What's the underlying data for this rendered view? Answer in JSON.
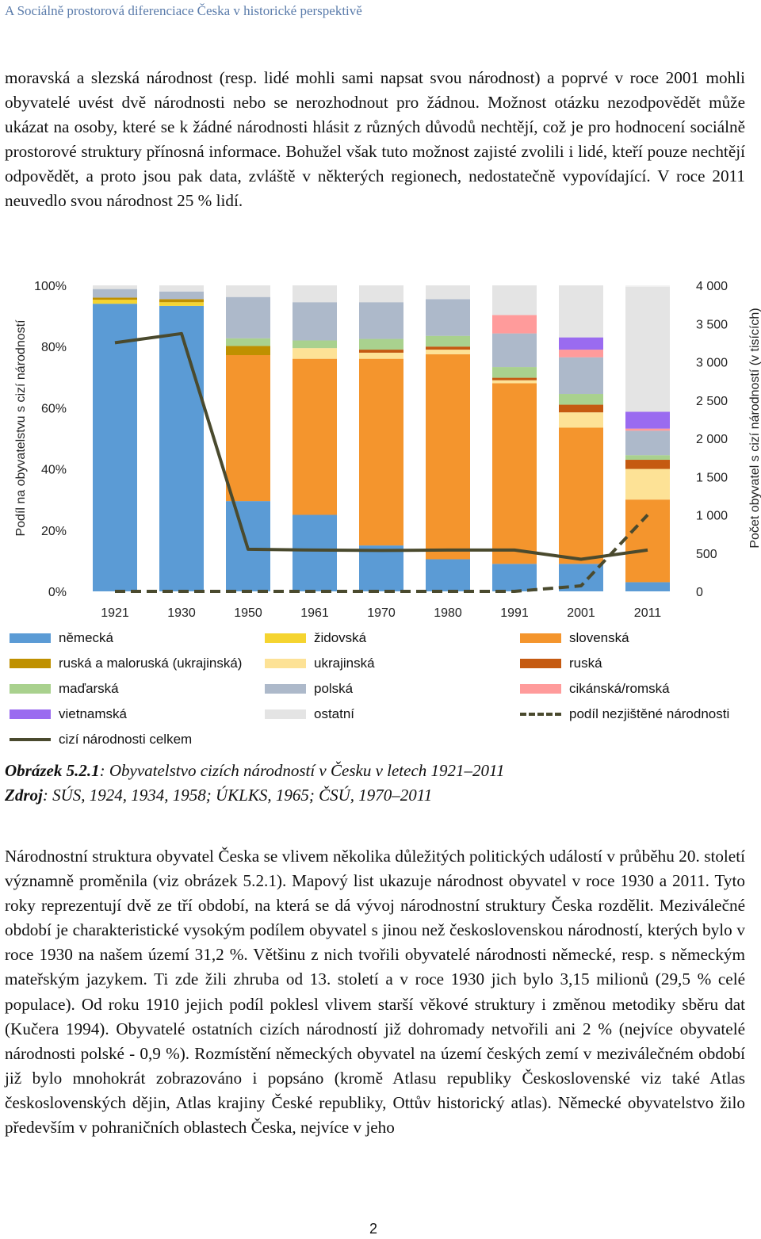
{
  "header": {
    "running_title": "A Sociálně prostorová diferenciace Česka v historické perspektivě"
  },
  "paragraph1": {
    "text": "moravská a slezská národnost (resp. lidé mohli sami napsat svou národnost) a poprvé v roce 2001 mohli obyvatelé uvést dvě národnosti nebo se nerozhodnout pro žádnou. Možnost otázku nezodpovědět může ukázat na osoby, které se k žádné národnosti hlásit z různých důvodů nechtějí, což je pro hodnocení sociálně prostorové struktury přínosná informace. Bohužel však tuto možnost zajisté zvolili i lidé, kteří pouze nechtějí odpovědět, a proto jsou pak data, zvláště v některých regionech, nedostatečně vypovídající. V roce 2011 neuvedlo svou národnost 25 % lidí."
  },
  "chart_data": {
    "type": "bar",
    "stacked": true,
    "categories": [
      "1921",
      "1930",
      "1950",
      "1961",
      "1970",
      "1980",
      "1991",
      "2001",
      "2011"
    ],
    "ylabel": "Podíl na obyvatelstvu s cizí národností",
    "y2label": "Počet obyvatel s cizí národností (v tisících)",
    "y_ticks": [
      "0%",
      "20%",
      "40%",
      "60%",
      "80%",
      "100%"
    ],
    "y2_ticks": [
      "0",
      "500",
      "1 000",
      "1 500",
      "2 000",
      "2 500",
      "3 000",
      "3 500",
      "4 000"
    ],
    "ylim": [
      0,
      100
    ],
    "y2lim": [
      0,
      4000
    ],
    "series": [
      {
        "name": "německá",
        "color": "#5b9bd5",
        "values": [
          94,
          93.3,
          29.5,
          25,
          15,
          10.5,
          9,
          9,
          3
        ]
      },
      {
        "name": "židovská",
        "color": "#f5d430",
        "values": [
          1.3,
          1.2,
          0,
          0,
          0,
          0,
          0,
          0,
          0
        ]
      },
      {
        "name": "slovenská",
        "color": "#f4952d",
        "values": [
          0,
          0,
          47.7,
          51,
          61,
          67,
          59,
          44.5,
          27
        ]
      },
      {
        "name": "ruská a maloruská (ukrajinská)",
        "color": "#bf9000",
        "values": [
          0.7,
          1,
          3,
          0,
          0,
          0,
          0,
          0,
          0
        ]
      },
      {
        "name": "ukrajinská",
        "color": "#fde296",
        "values": [
          0,
          0,
          0,
          3.5,
          2,
          1.5,
          1,
          5,
          10
        ]
      },
      {
        "name": "ruská",
        "color": "#c55a11",
        "values": [
          0,
          0,
          0,
          0,
          1,
          1,
          0.8,
          2.5,
          3
        ]
      },
      {
        "name": "maďarská",
        "color": "#a9d18e",
        "values": [
          0,
          0,
          2.5,
          2.5,
          3.5,
          3.5,
          3.5,
          3.5,
          1.5
        ]
      },
      {
        "name": "polská",
        "color": "#adb9ca",
        "values": [
          2.8,
          2.5,
          13.5,
          12.5,
          12,
          12,
          11,
          12,
          8
        ]
      },
      {
        "name": "cikánská/romská",
        "color": "#ff9b9b",
        "values": [
          0,
          0,
          0,
          0,
          0,
          0,
          6,
          2.5,
          0.7
        ]
      },
      {
        "name": "vietnamská",
        "color": "#9a6bf0",
        "values": [
          0,
          0,
          0,
          0,
          0,
          0,
          0,
          4,
          5.5
        ]
      },
      {
        "name": "ostatní",
        "color": "#e4e4e4",
        "values": [
          1.2,
          2,
          3.8,
          5.5,
          5.5,
          4.5,
          9.7,
          17,
          40.8
        ]
      }
    ],
    "lines": [
      {
        "name": "cizí národnosti celkem",
        "axis": "y2",
        "style": "solid",
        "color": "#4a4a2e",
        "values": [
          3250,
          3370,
          550,
          540,
          535,
          540,
          540,
          420,
          540
        ]
      },
      {
        "name": "podíl nezjištěné národnosti",
        "axis": "y",
        "style": "dashed",
        "color": "#4a4a2e",
        "values": [
          0,
          0,
          0,
          0,
          0,
          0,
          0,
          1.8,
          25
        ]
      }
    ],
    "legend": [
      "německá",
      "židovská",
      "slovenská",
      "ruská a maloruská (ukrajinská)",
      "ukrajinská",
      "ruská",
      "maďarská",
      "polská",
      "cikánská/romská",
      "vietnamská",
      "ostatní",
      "podíl nezjištěné národnosti",
      "cizí národnosti celkem"
    ]
  },
  "caption": {
    "figure_label": "Obrázek 5.2.1",
    "figure_text": ": Obyvatelstvo cizích národností v Česku v letech 1921–2011",
    "source_label": "Zdroj",
    "source_text": ": SÚS, 1924, 1934, 1958; ÚKLKS, 1965; ČSÚ, 1970–2011"
  },
  "paragraph2": {
    "text": "Národnostní struktura obyvatel Česka se vlivem několika důležitých politických událostí v průběhu 20. století významně proměnila (viz obrázek 5.2.1). Mapový list ukazuje národnost obyvatel v roce 1930 a 2011. Tyto roky reprezentují dvě ze tří období, na která se dá vývoj národnostní struktury Česka rozdělit. Meziválečné období je charakteristické vysokým podílem obyvatel s jinou než československou národností, kterých bylo v roce 1930 na našem území 31,2 %. Většinu z nich tvořili obyvatelé národnosti německé, resp. s německým mateřským jazykem. Ti zde žili zhruba od 13. století a v roce 1930 jich bylo 3,15 milionů (29,5 % celé populace). Od roku 1910 jejich podíl poklesl vlivem starší věkové struktury i změnou metodiky sběru dat (Kučera 1994). Obyvatelé ostatních cizích národností již dohromady netvořili ani 2 % (nejvíce obyvatelé národnosti polské - 0,9 %). Rozmístění německých obyvatel na území českých zemí v meziválečném období již bylo mnohokrát zobrazováno i popsáno (kromě Atlasu republiky Československé viz také Atlas československých dějin, Atlas krajiny České republiky, Ottův historický atlas). Německé obyvatelstvo žilo především v pohraničních oblastech Česka, nejvíce v jeho"
  },
  "footer": {
    "page_number": "2"
  }
}
